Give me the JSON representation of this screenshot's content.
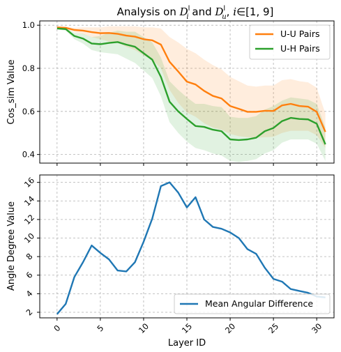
{
  "chart_data": [
    {
      "type": "line",
      "title": {
        "prefix": "Analysis on ",
        "d": "D",
        "sup": "l",
        "sub_i": "i",
        "and": " and ",
        "sub_u": "u",
        "tail": ", ",
        "i": "i",
        "set": "∈[1, 9]"
      },
      "xlabel": "",
      "ylabel": "Cos_sim Value",
      "xlim": [
        -2,
        32
      ],
      "ylim": [
        0.36,
        1.02
      ],
      "yticks": [
        0.4,
        0.6,
        0.8,
        1.0
      ],
      "ytick_labels": [
        "0.4",
        "0.6",
        "0.8",
        "1.0"
      ],
      "grid": true,
      "legend": "top-right",
      "x": [
        0,
        1,
        2,
        3,
        4,
        5,
        6,
        7,
        8,
        9,
        10,
        11,
        12,
        13,
        14,
        15,
        16,
        17,
        18,
        19,
        20,
        21,
        22,
        23,
        24,
        25,
        26,
        27,
        28,
        29,
        30,
        31
      ],
      "series": [
        {
          "name": "U-U Pairs",
          "color": "#ff7f0e",
          "values": [
            0.99,
            0.988,
            0.978,
            0.975,
            0.968,
            0.963,
            0.964,
            0.96,
            0.952,
            0.947,
            0.935,
            0.93,
            0.91,
            0.83,
            0.785,
            0.738,
            0.725,
            0.695,
            0.672,
            0.66,
            0.625,
            0.612,
            0.598,
            0.598,
            0.603,
            0.602,
            0.628,
            0.635,
            0.625,
            0.622,
            0.598,
            0.505
          ],
          "band_lower": [
            0.985,
            0.983,
            0.968,
            0.958,
            0.945,
            0.935,
            0.925,
            0.918,
            0.9,
            0.885,
            0.86,
            0.84,
            0.8,
            0.7,
            0.64,
            0.595,
            0.575,
            0.545,
            0.525,
            0.515,
            0.495,
            0.485,
            0.48,
            0.478,
            0.48,
            0.482,
            0.5,
            0.51,
            0.51,
            0.51,
            0.49,
            0.43
          ],
          "band_upper": [
            0.995,
            0.993,
            0.988,
            0.99,
            0.99,
            0.99,
            0.995,
            0.995,
            0.995,
            0.995,
            0.99,
            0.99,
            0.985,
            0.945,
            0.92,
            0.89,
            0.87,
            0.84,
            0.815,
            0.795,
            0.76,
            0.74,
            0.72,
            0.715,
            0.72,
            0.72,
            0.745,
            0.75,
            0.74,
            0.735,
            0.71,
            0.59
          ]
        },
        {
          "name": "U-H Pairs",
          "color": "#2ca02c",
          "values": [
            0.985,
            0.982,
            0.95,
            0.938,
            0.915,
            0.912,
            0.918,
            0.922,
            0.91,
            0.9,
            0.87,
            0.84,
            0.76,
            0.645,
            0.6,
            0.565,
            0.532,
            0.528,
            0.515,
            0.508,
            0.47,
            0.467,
            0.47,
            0.478,
            0.508,
            0.523,
            0.555,
            0.57,
            0.565,
            0.563,
            0.543,
            0.447
          ],
          "band_lower": [
            0.98,
            0.975,
            0.935,
            0.915,
            0.885,
            0.875,
            0.87,
            0.865,
            0.845,
            0.825,
            0.79,
            0.755,
            0.67,
            0.55,
            0.5,
            0.46,
            0.43,
            0.42,
            0.405,
            0.395,
            0.37,
            0.365,
            0.37,
            0.378,
            0.405,
            0.42,
            0.455,
            0.47,
            0.47,
            0.47,
            0.45,
            0.37
          ],
          "band_upper": [
            0.99,
            0.988,
            0.965,
            0.96,
            0.945,
            0.95,
            0.965,
            0.975,
            0.97,
            0.97,
            0.945,
            0.92,
            0.85,
            0.74,
            0.7,
            0.665,
            0.635,
            0.635,
            0.625,
            0.62,
            0.575,
            0.57,
            0.57,
            0.578,
            0.608,
            0.625,
            0.65,
            0.665,
            0.66,
            0.655,
            0.635,
            0.525
          ]
        }
      ]
    },
    {
      "type": "line",
      "title": "",
      "xlabel": "Layer ID",
      "ylabel": "Angle Degree Value",
      "xlim": [
        -2,
        32
      ],
      "ylim": [
        1.4,
        16.8
      ],
      "xticks": [
        0,
        5,
        10,
        15,
        20,
        25,
        30
      ],
      "xtick_labels": [
        "0",
        "5",
        "10",
        "15",
        "20",
        "25",
        "30"
      ],
      "yticks": [
        2,
        4,
        6,
        8,
        10,
        12,
        14,
        16
      ],
      "ytick_labels": [
        "2",
        "4",
        "6",
        "8",
        "10",
        "12",
        "14",
        "16"
      ],
      "grid": true,
      "legend": "bottom-right",
      "x": [
        0,
        1,
        2,
        3,
        4,
        5,
        6,
        7,
        8,
        9,
        10,
        11,
        12,
        13,
        14,
        15,
        16,
        17,
        18,
        19,
        20,
        21,
        22,
        23,
        24,
        25,
        26,
        27,
        28,
        29,
        30,
        31
      ],
      "series": [
        {
          "name": "Mean Angular Difference",
          "color": "#1f77b4",
          "values": [
            1.8,
            2.9,
            5.8,
            7.4,
            9.2,
            8.4,
            7.7,
            6.5,
            6.4,
            7.4,
            9.6,
            12.1,
            15.6,
            16.0,
            14.9,
            13.3,
            14.4,
            12.0,
            11.2,
            11.0,
            10.6,
            10.0,
            8.8,
            8.3,
            6.8,
            5.6,
            5.3,
            4.5,
            4.3,
            4.1,
            3.7,
            3.6
          ]
        }
      ]
    }
  ]
}
